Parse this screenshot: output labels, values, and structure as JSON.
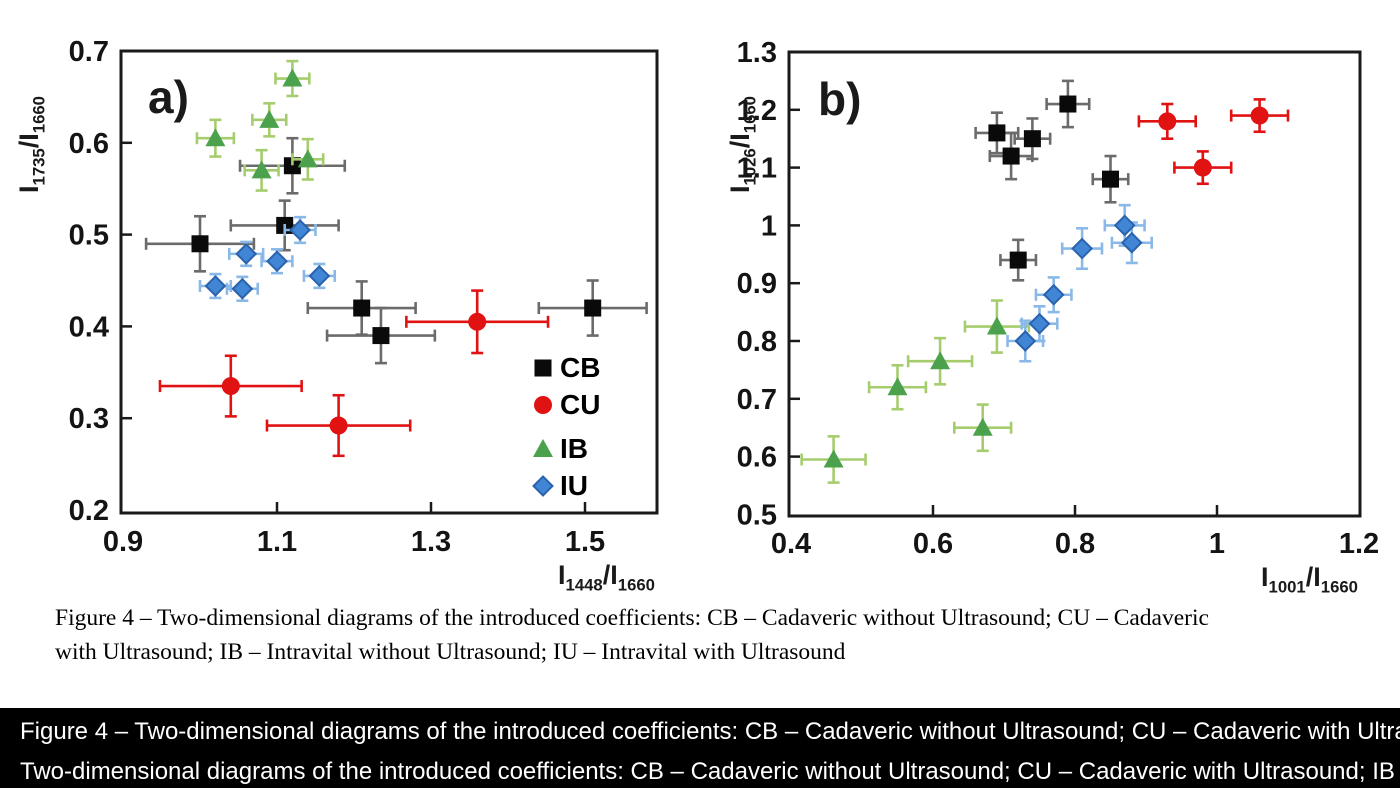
{
  "colors": {
    "CB": {
      "fill": "#0a0a0a",
      "stroke": "none",
      "err": "#6b6b6b"
    },
    "CU": {
      "fill": "#e11212",
      "stroke": "none",
      "err": "#e11212"
    },
    "IB": {
      "fill": "#4ca24c",
      "stroke": "none",
      "err": "#a6cd6d"
    },
    "IU": {
      "fill": "#4186d4",
      "stroke": "#2a62ad",
      "err": "#8ab9e8"
    }
  },
  "legend": {
    "items": [
      {
        "label": "CB",
        "marker": "square"
      },
      {
        "label": "CU",
        "marker": "circle"
      },
      {
        "label": "IB",
        "marker": "triangle"
      },
      {
        "label": "IU",
        "marker": "diamond"
      }
    ]
  },
  "chart_data": [
    {
      "type": "scatter",
      "panel_label": "a)",
      "xlabel": {
        "base": "I",
        "sub": "1448",
        "base2": "/I",
        "sub2": "1660"
      },
      "ylabel": {
        "base": "I",
        "sub": "1735",
        "base2": "/I",
        "sub2": "1660"
      },
      "xlim": [
        0.9,
        1.6
      ],
      "ylim": [
        0.2,
        0.7
      ],
      "grid": false,
      "legend_position": "inside-bottom-right",
      "xticks": [
        {
          "v": 0.9,
          "label": "0.9"
        },
        {
          "v": 1.1,
          "label": "1.1"
        },
        {
          "v": 1.3,
          "label": "1.3"
        },
        {
          "v": 1.5,
          "label": "1.5"
        }
      ],
      "yticks": [
        {
          "v": 0.7,
          "label": "0.7"
        },
        {
          "v": 0.6,
          "label": "0.6"
        },
        {
          "v": 0.5,
          "label": "0.5"
        },
        {
          "v": 0.4,
          "label": "0.4"
        },
        {
          "v": 0.3,
          "label": "0.3"
        },
        {
          "v": 0.2,
          "label": "0.2"
        }
      ],
      "series": [
        {
          "name": "CB",
          "marker": "square",
          "points": [
            [
              1.0,
              0.49,
              0.07,
              0.03
            ],
            [
              1.12,
              0.575,
              0.068,
              0.03
            ],
            [
              1.11,
              0.51,
              0.07,
              0.027
            ],
            [
              1.21,
              0.42,
              0.07,
              0.029
            ],
            [
              1.235,
              0.39,
              0.07,
              0.03
            ],
            [
              1.51,
              0.42,
              0.07,
              0.03
            ]
          ]
        },
        {
          "name": "CU",
          "marker": "circle",
          "points": [
            [
              1.04,
              0.335,
              0.092,
              0.033
            ],
            [
              1.18,
              0.292,
              0.093,
              0.033
            ],
            [
              1.36,
              0.405,
              0.092,
              0.034
            ]
          ]
        },
        {
          "name": "IB",
          "marker": "triangle",
          "points": [
            [
              1.02,
              0.605,
              0.024,
              0.02
            ],
            [
              1.09,
              0.625,
              0.022,
              0.018
            ],
            [
              1.12,
              0.67,
              0.022,
              0.019
            ],
            [
              1.08,
              0.57,
              0.022,
              0.022
            ],
            [
              1.14,
              0.582,
              0.02,
              0.022
            ]
          ]
        },
        {
          "name": "IU",
          "marker": "diamond",
          "points": [
            [
              1.02,
              0.444,
              0.02,
              0.013
            ],
            [
              1.055,
              0.441,
              0.02,
              0.013
            ],
            [
              1.06,
              0.479,
              0.022,
              0.013
            ],
            [
              1.1,
              0.471,
              0.02,
              0.013
            ],
            [
              1.13,
              0.505,
              0.02,
              0.014
            ],
            [
              1.155,
              0.455,
              0.02,
              0.013
            ]
          ]
        }
      ]
    },
    {
      "type": "scatter",
      "panel_label": "b)",
      "xlabel": {
        "base": "I",
        "sub": "1001",
        "base2": "/I",
        "sub2": "1660"
      },
      "ylabel": {
        "base": "I",
        "sub": "1026",
        "base2": "/I",
        "sub2": "1660"
      },
      "xlim": [
        0.4,
        1.2
      ],
      "ylim": [
        0.5,
        1.3
      ],
      "grid": false,
      "legend_position": "none",
      "xticks": [
        {
          "v": 0.4,
          "label": "0.4"
        },
        {
          "v": 0.6,
          "label": "0.6"
        },
        {
          "v": 0.8,
          "label": "0.8"
        },
        {
          "v": 1.0,
          "label": "1"
        },
        {
          "v": 1.2,
          "label": "1.2"
        }
      ],
      "yticks": [
        {
          "v": 1.3,
          "label": "1.3"
        },
        {
          "v": 1.2,
          "label": "1.2"
        },
        {
          "v": 1.1,
          "label": "1.1"
        },
        {
          "v": 1.0,
          "label": "1"
        },
        {
          "v": 0.9,
          "label": "0.9"
        },
        {
          "v": 0.8,
          "label": "0.8"
        },
        {
          "v": 0.7,
          "label": "0.7"
        },
        {
          "v": 0.6,
          "label": "0.6"
        },
        {
          "v": 0.5,
          "label": "0.5"
        }
      ],
      "series": [
        {
          "name": "CB",
          "marker": "square",
          "points": [
            [
              0.79,
              1.21,
              0.03,
              0.04
            ],
            [
              0.69,
              1.16,
              0.03,
              0.035
            ],
            [
              0.74,
              1.15,
              0.025,
              0.035
            ],
            [
              0.71,
              1.12,
              0.03,
              0.04
            ],
            [
              0.85,
              1.08,
              0.025,
              0.04
            ],
            [
              0.72,
              0.94,
              0.025,
              0.035
            ]
          ]
        },
        {
          "name": "CU",
          "marker": "circle",
          "points": [
            [
              0.93,
              1.18,
              0.04,
              0.03
            ],
            [
              1.06,
              1.19,
              0.04,
              0.028
            ],
            [
              0.98,
              1.1,
              0.04,
              0.028
            ]
          ]
        },
        {
          "name": "IB",
          "marker": "triangle",
          "points": [
            [
              0.46,
              0.595,
              0.045,
              0.04
            ],
            [
              0.55,
              0.72,
              0.04,
              0.038
            ],
            [
              0.61,
              0.765,
              0.045,
              0.04
            ],
            [
              0.69,
              0.825,
              0.045,
              0.045
            ],
            [
              0.67,
              0.65,
              0.04,
              0.04
            ]
          ]
        },
        {
          "name": "IU",
          "marker": "diamond",
          "points": [
            [
              0.73,
              0.8,
              0.025,
              0.035
            ],
            [
              0.75,
              0.83,
              0.025,
              0.03
            ],
            [
              0.77,
              0.88,
              0.025,
              0.03
            ],
            [
              0.81,
              0.96,
              0.028,
              0.035
            ],
            [
              0.87,
              1.0,
              0.028,
              0.035
            ],
            [
              0.88,
              0.97,
              0.028,
              0.035
            ]
          ]
        }
      ]
    }
  ],
  "caption": {
    "line1": "Figure 4 – Two-dimensional diagrams of the introduced coefficients: CB – Cadaveric without Ultrasound; CU – Cadaveric",
    "line2": "with Ultrasound; IB – Intravital without Ultrasound; IU – Intravital with Ultrasound"
  },
  "overlay_bars": {
    "line1": "Figure 4 – Two-dimensional diagrams of the introduced coefficients: CB – Cadaveric without Ultrasound; CU – Cadaveric with Ultras",
    "line2": "Two-dimensional diagrams of the introduced coefficients: CB – Cadaveric without Ultrasound; CU – Cadaveric with Ultrasound; IB –"
  }
}
